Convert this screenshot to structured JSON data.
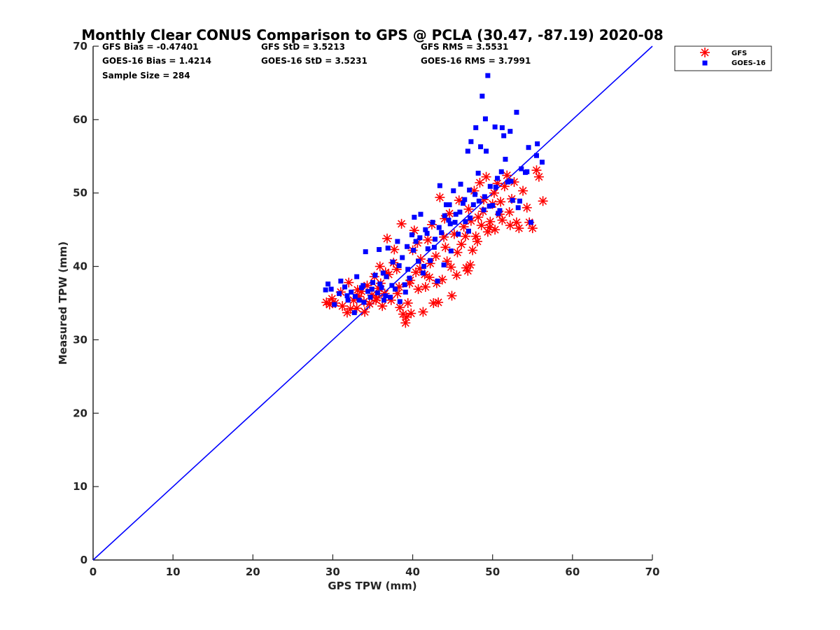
{
  "chart_data": {
    "type": "scatter",
    "title": "Monthly Clear CONUS Comparison to GPS @ PCLA (30.47, -87.19) 2020-08",
    "xlabel": "GPS TPW (mm)",
    "ylabel": "Measured TPW (mm)",
    "xlim": [
      0,
      70
    ],
    "ylim": [
      0,
      70
    ],
    "xticks": [
      0,
      10,
      20,
      30,
      40,
      50,
      60,
      70
    ],
    "yticks": [
      0,
      10,
      20,
      30,
      40,
      50,
      60,
      70
    ],
    "grid": false,
    "legend_position": "top-right, outside plot area",
    "reference_line": {
      "x": [
        0,
        70
      ],
      "y": [
        0,
        70
      ],
      "color": "#0000ff"
    },
    "stats": [
      "GFS Bias = -0.47401",
      "GFS StD = 3.5213",
      "GFS RMS = 3.5531",
      "GOES-16 Bias = 1.4214",
      "GOES-16 StD = 3.5231",
      "GOES-16 RMS = 3.7991",
      "Sample Size = 284"
    ],
    "series": [
      {
        "name": "GFS",
        "marker": "asterisk",
        "color": "#ff0000",
        "points": [
          [
            29.2,
            35.1
          ],
          [
            29.6,
            34.8
          ],
          [
            29.9,
            35.6
          ],
          [
            30.3,
            35.0
          ],
          [
            31.2,
            34.6
          ],
          [
            31.8,
            33.7
          ],
          [
            32.2,
            34.2
          ],
          [
            32.6,
            35.4
          ],
          [
            33.0,
            34.3
          ],
          [
            33.3,
            35.9
          ],
          [
            33.6,
            36.6
          ],
          [
            33.9,
            35.2
          ],
          [
            34.3,
            37.4
          ],
          [
            34.6,
            34.9
          ],
          [
            34.9,
            36.1
          ],
          [
            35.2,
            38.6
          ],
          [
            35.4,
            35.4
          ],
          [
            35.7,
            37.0
          ],
          [
            35.9,
            40.0
          ],
          [
            36.2,
            34.6
          ],
          [
            36.5,
            36.3
          ],
          [
            36.8,
            43.8
          ],
          [
            37.0,
            38.9
          ],
          [
            37.3,
            35.4
          ],
          [
            37.7,
            42.3
          ],
          [
            38.0,
            39.6
          ],
          [
            38.3,
            37.2
          ],
          [
            38.6,
            45.8
          ],
          [
            38.8,
            33.5
          ],
          [
            39.1,
            32.3
          ],
          [
            39.2,
            33.1
          ],
          [
            39.4,
            35.0
          ],
          [
            39.6,
            37.7
          ],
          [
            39.8,
            33.6
          ],
          [
            40.0,
            42.2
          ],
          [
            40.2,
            44.9
          ],
          [
            40.4,
            39.2
          ],
          [
            40.7,
            36.9
          ],
          [
            41.0,
            41.0
          ],
          [
            41.3,
            33.8
          ],
          [
            41.6,
            37.2
          ],
          [
            41.9,
            43.6
          ],
          [
            42.1,
            38.5
          ],
          [
            42.4,
            45.7
          ],
          [
            42.6,
            35.0
          ],
          [
            42.9,
            41.4
          ],
          [
            43.2,
            35.1
          ],
          [
            43.4,
            49.4
          ],
          [
            43.7,
            38.2
          ],
          [
            44.0,
            46.5
          ],
          [
            44.3,
            40.7
          ],
          [
            44.6,
            47.2
          ],
          [
            44.9,
            36.0
          ],
          [
            45.2,
            44.4
          ],
          [
            45.5,
            38.8
          ],
          [
            45.8,
            49.0
          ],
          [
            46.1,
            43.0
          ],
          [
            46.4,
            45.4
          ],
          [
            46.7,
            39.8
          ],
          [
            47.0,
            47.8
          ],
          [
            47.2,
            40.2
          ],
          [
            47.5,
            42.2
          ],
          [
            47.7,
            50.3
          ],
          [
            47.9,
            44.1
          ],
          [
            48.2,
            46.7
          ],
          [
            48.4,
            51.4
          ],
          [
            48.6,
            45.6
          ],
          [
            48.9,
            49.1
          ],
          [
            49.2,
            52.2
          ],
          [
            49.4,
            44.7
          ],
          [
            49.7,
            46.1
          ],
          [
            50.0,
            48.5
          ],
          [
            50.3,
            45.0
          ],
          [
            50.6,
            51.3
          ],
          [
            50.9,
            47.1
          ],
          [
            51.2,
            46.3
          ],
          [
            51.5,
            50.9
          ],
          [
            51.8,
            52.4
          ],
          [
            52.1,
            47.4
          ],
          [
            52.4,
            49.2
          ],
          [
            52.7,
            51.5
          ],
          [
            53.0,
            46.0
          ],
          [
            53.3,
            45.2
          ],
          [
            53.8,
            50.3
          ],
          [
            54.3,
            48.0
          ],
          [
            54.6,
            46.0
          ],
          [
            55.0,
            45.2
          ],
          [
            55.5,
            53.1
          ],
          [
            55.8,
            52.2
          ],
          [
            56.3,
            48.9
          ],
          [
            31.0,
            36.5
          ],
          [
            32.0,
            37.8
          ],
          [
            33.1,
            36.8
          ],
          [
            34.0,
            33.8
          ],
          [
            35.5,
            35.7
          ],
          [
            36.6,
            39.2
          ],
          [
            37.6,
            40.5
          ],
          [
            38.4,
            34.4
          ],
          [
            39.7,
            38.1
          ],
          [
            40.6,
            43.2
          ],
          [
            41.5,
            38.9
          ],
          [
            42.2,
            40.4
          ],
          [
            43.0,
            37.7
          ],
          [
            43.9,
            44.0
          ],
          [
            44.8,
            39.9
          ],
          [
            45.6,
            41.9
          ],
          [
            46.6,
            44.1
          ],
          [
            47.3,
            46.2
          ],
          [
            48.1,
            43.4
          ],
          [
            48.8,
            47.5
          ],
          [
            50.2,
            50.0
          ],
          [
            51.0,
            48.8
          ],
          [
            52.2,
            45.6
          ],
          [
            36.0,
            37.7
          ],
          [
            38.1,
            36.3
          ],
          [
            40.9,
            39.7
          ],
          [
            44.1,
            42.6
          ],
          [
            46.9,
            39.4
          ],
          [
            49.6,
            45.3
          ]
        ]
      },
      {
        "name": "GOES-16",
        "marker": "square",
        "color": "#0000ff",
        "points": [
          [
            29.1,
            36.8
          ],
          [
            29.4,
            37.6
          ],
          [
            29.8,
            36.9
          ],
          [
            30.2,
            34.8
          ],
          [
            31.0,
            38.0
          ],
          [
            31.5,
            37.2
          ],
          [
            31.9,
            35.4
          ],
          [
            32.3,
            36.5
          ],
          [
            32.7,
            33.7
          ],
          [
            33.0,
            38.6
          ],
          [
            33.3,
            35.4
          ],
          [
            33.6,
            37.1
          ],
          [
            33.9,
            35.1
          ],
          [
            34.1,
            42.0
          ],
          [
            34.4,
            36.6
          ],
          [
            34.7,
            35.8
          ],
          [
            35.0,
            37.8
          ],
          [
            35.3,
            38.8
          ],
          [
            35.6,
            36.4
          ],
          [
            35.8,
            42.3
          ],
          [
            36.1,
            37.1
          ],
          [
            36.4,
            35.4
          ],
          [
            36.7,
            38.6
          ],
          [
            36.9,
            42.5
          ],
          [
            37.2,
            35.8
          ],
          [
            37.5,
            40.6
          ],
          [
            37.8,
            36.9
          ],
          [
            38.1,
            43.4
          ],
          [
            38.4,
            35.2
          ],
          [
            38.7,
            41.2
          ],
          [
            39.0,
            37.5
          ],
          [
            39.3,
            42.7
          ],
          [
            39.6,
            38.4
          ],
          [
            39.9,
            44.3
          ],
          [
            40.2,
            46.7
          ],
          [
            40.4,
            43.4
          ],
          [
            40.7,
            40.7
          ],
          [
            41.0,
            47.1
          ],
          [
            41.3,
            39.1
          ],
          [
            41.6,
            45.0
          ],
          [
            41.9,
            42.4
          ],
          [
            42.2,
            40.8
          ],
          [
            42.5,
            46.0
          ],
          [
            42.8,
            43.7
          ],
          [
            43.1,
            38.0
          ],
          [
            43.4,
            51.0
          ],
          [
            43.6,
            44.6
          ],
          [
            43.9,
            40.2
          ],
          [
            44.2,
            48.4
          ],
          [
            44.5,
            46.3
          ],
          [
            44.8,
            42.1
          ],
          [
            45.1,
            50.3
          ],
          [
            45.4,
            47.1
          ],
          [
            45.7,
            44.4
          ],
          [
            46.0,
            51.2
          ],
          [
            46.3,
            48.6
          ],
          [
            46.6,
            46.1
          ],
          [
            46.9,
            55.7
          ],
          [
            47.1,
            50.4
          ],
          [
            47.3,
            57.0
          ],
          [
            47.6,
            48.4
          ],
          [
            47.9,
            58.9
          ],
          [
            48.2,
            52.7
          ],
          [
            48.5,
            56.3
          ],
          [
            48.7,
            63.2
          ],
          [
            48.9,
            47.7
          ],
          [
            49.1,
            60.1
          ],
          [
            49.2,
            55.7
          ],
          [
            49.4,
            66.0
          ],
          [
            49.7,
            50.9
          ],
          [
            50.0,
            48.3
          ],
          [
            50.3,
            59.0
          ],
          [
            50.6,
            52.0
          ],
          [
            50.9,
            47.6
          ],
          [
            51.2,
            58.9
          ],
          [
            51.4,
            57.8
          ],
          [
            51.6,
            54.6
          ],
          [
            51.9,
            51.5
          ],
          [
            52.2,
            58.4
          ],
          [
            52.5,
            49.0
          ],
          [
            53.0,
            61.0
          ],
          [
            53.2,
            48.0
          ],
          [
            53.6,
            53.3
          ],
          [
            54.1,
            52.8
          ],
          [
            54.5,
            56.2
          ],
          [
            54.8,
            46.0
          ],
          [
            55.5,
            55.1
          ],
          [
            55.6,
            56.7
          ],
          [
            56.2,
            54.2
          ],
          [
            30.8,
            36.3
          ],
          [
            31.8,
            36.0
          ],
          [
            32.8,
            35.9
          ],
          [
            33.8,
            37.4
          ],
          [
            34.9,
            36.9
          ],
          [
            35.9,
            37.6
          ],
          [
            36.6,
            36.0
          ],
          [
            37.4,
            37.4
          ],
          [
            38.3,
            40.1
          ],
          [
            39.4,
            39.6
          ],
          [
            40.1,
            42.2
          ],
          [
            40.9,
            43.9
          ],
          [
            41.8,
            44.5
          ],
          [
            42.7,
            42.6
          ],
          [
            43.3,
            45.3
          ],
          [
            44.0,
            46.9
          ],
          [
            44.7,
            45.8
          ],
          [
            45.3,
            46.0
          ],
          [
            45.9,
            47.4
          ],
          [
            46.5,
            49.1
          ],
          [
            47.2,
            46.6
          ],
          [
            47.8,
            49.8
          ],
          [
            48.3,
            48.9
          ],
          [
            49.0,
            49.5
          ],
          [
            49.6,
            48.2
          ],
          [
            50.4,
            50.8
          ],
          [
            51.1,
            52.9
          ],
          [
            52.3,
            51.6
          ],
          [
            53.4,
            48.9
          ],
          [
            54.3,
            52.9
          ],
          [
            44.6,
            48.4
          ],
          [
            47.0,
            44.8
          ],
          [
            50.7,
            47.2
          ],
          [
            39.1,
            36.5
          ],
          [
            36.3,
            39.1
          ],
          [
            41.4,
            40.0
          ]
        ]
      }
    ]
  }
}
